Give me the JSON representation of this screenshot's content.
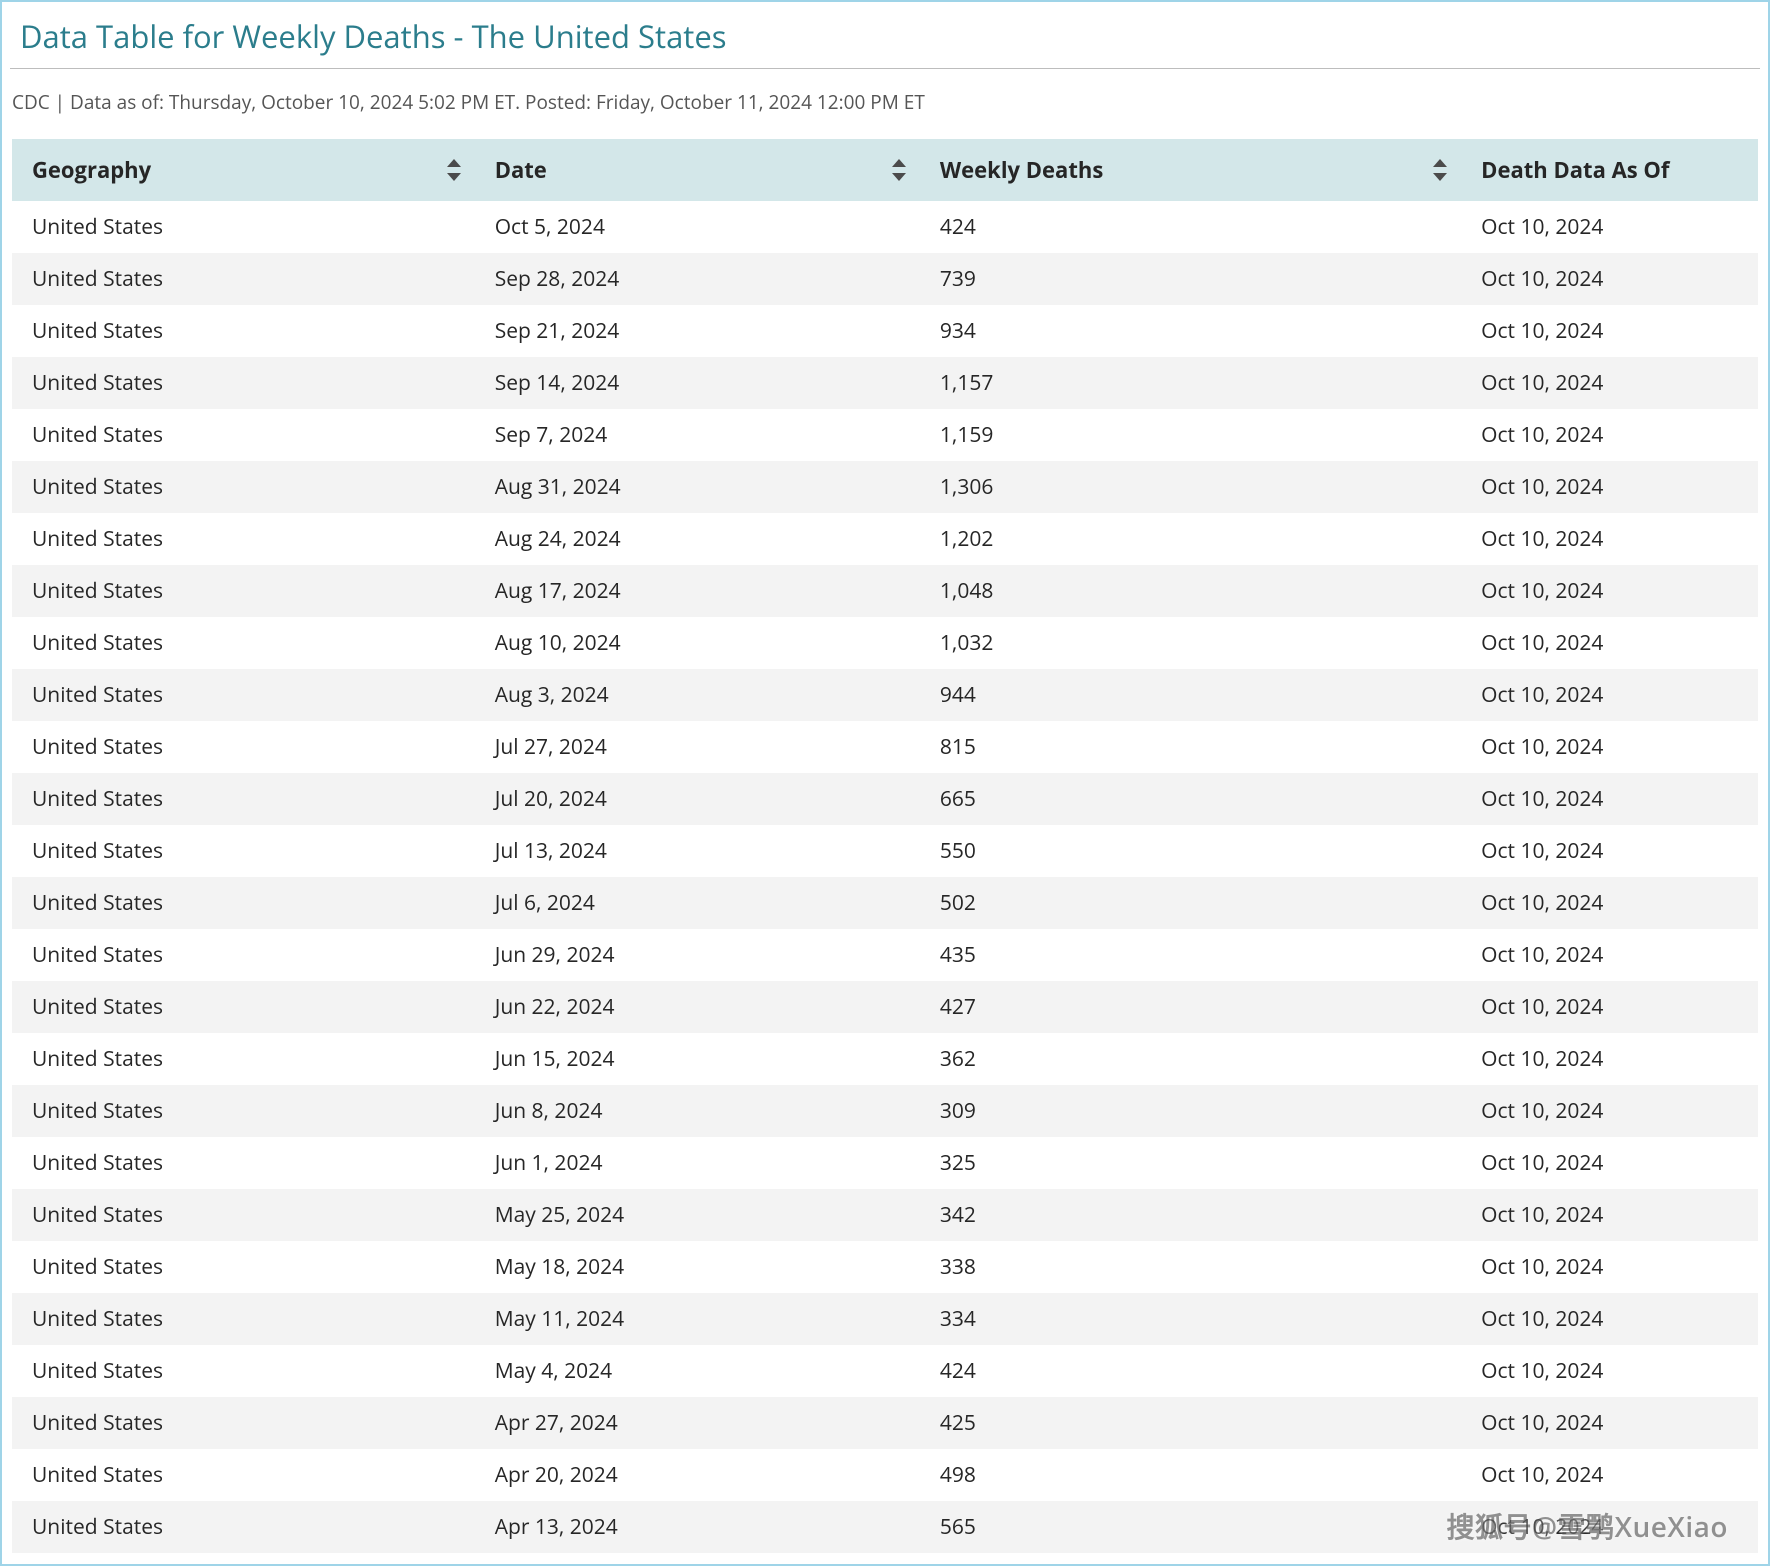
{
  "title": "Data Table for Weekly Deaths - The United States",
  "meta": "CDC | Data as of: Thursday, October 10, 2024 5:02 PM ET. Posted: Friday, October 11, 2024 12:00 PM ET",
  "watermark": "搜狐号@雪鹗XueXiao",
  "table": {
    "columns": [
      {
        "key": "geo",
        "label": "Geography",
        "sortable": true
      },
      {
        "key": "date",
        "label": "Date",
        "sortable": true
      },
      {
        "key": "deaths",
        "label": "Weekly Deaths",
        "sortable": true
      },
      {
        "key": "asof",
        "label": "Death Data As Of",
        "sortable": false
      }
    ],
    "col_widths_pct": [
      26.5,
      25.5,
      31,
      17
    ],
    "header_bg": "#d3e7e9",
    "row_even_bg": "#f3f3f3",
    "row_odd_bg": "#ffffff",
    "text_color": "#262626",
    "rows": [
      {
        "geo": "United States",
        "date": "Oct 5, 2024",
        "deaths": "424",
        "asof": "Oct 10, 2024"
      },
      {
        "geo": "United States",
        "date": "Sep 28, 2024",
        "deaths": "739",
        "asof": "Oct 10, 2024"
      },
      {
        "geo": "United States",
        "date": "Sep 21, 2024",
        "deaths": "934",
        "asof": "Oct 10, 2024"
      },
      {
        "geo": "United States",
        "date": "Sep 14, 2024",
        "deaths": "1,157",
        "asof": "Oct 10, 2024"
      },
      {
        "geo": "United States",
        "date": "Sep 7, 2024",
        "deaths": "1,159",
        "asof": "Oct 10, 2024"
      },
      {
        "geo": "United States",
        "date": "Aug 31, 2024",
        "deaths": "1,306",
        "asof": "Oct 10, 2024"
      },
      {
        "geo": "United States",
        "date": "Aug 24, 2024",
        "deaths": "1,202",
        "asof": "Oct 10, 2024"
      },
      {
        "geo": "United States",
        "date": "Aug 17, 2024",
        "deaths": "1,048",
        "asof": "Oct 10, 2024"
      },
      {
        "geo": "United States",
        "date": "Aug 10, 2024",
        "deaths": "1,032",
        "asof": "Oct 10, 2024"
      },
      {
        "geo": "United States",
        "date": "Aug 3, 2024",
        "deaths": "944",
        "asof": "Oct 10, 2024"
      },
      {
        "geo": "United States",
        "date": "Jul 27, 2024",
        "deaths": "815",
        "asof": "Oct 10, 2024"
      },
      {
        "geo": "United States",
        "date": "Jul 20, 2024",
        "deaths": "665",
        "asof": "Oct 10, 2024"
      },
      {
        "geo": "United States",
        "date": "Jul 13, 2024",
        "deaths": "550",
        "asof": "Oct 10, 2024"
      },
      {
        "geo": "United States",
        "date": "Jul 6, 2024",
        "deaths": "502",
        "asof": "Oct 10, 2024"
      },
      {
        "geo": "United States",
        "date": "Jun 29, 2024",
        "deaths": "435",
        "asof": "Oct 10, 2024"
      },
      {
        "geo": "United States",
        "date": "Jun 22, 2024",
        "deaths": "427",
        "asof": "Oct 10, 2024"
      },
      {
        "geo": "United States",
        "date": "Jun 15, 2024",
        "deaths": "362",
        "asof": "Oct 10, 2024"
      },
      {
        "geo": "United States",
        "date": "Jun 8, 2024",
        "deaths": "309",
        "asof": "Oct 10, 2024"
      },
      {
        "geo": "United States",
        "date": "Jun 1, 2024",
        "deaths": "325",
        "asof": "Oct 10, 2024"
      },
      {
        "geo": "United States",
        "date": "May 25, 2024",
        "deaths": "342",
        "asof": "Oct 10, 2024"
      },
      {
        "geo": "United States",
        "date": "May 18, 2024",
        "deaths": "338",
        "asof": "Oct 10, 2024"
      },
      {
        "geo": "United States",
        "date": "May 11, 2024",
        "deaths": "334",
        "asof": "Oct 10, 2024"
      },
      {
        "geo": "United States",
        "date": "May 4, 2024",
        "deaths": "424",
        "asof": "Oct 10, 2024"
      },
      {
        "geo": "United States",
        "date": "Apr 27, 2024",
        "deaths": "425",
        "asof": "Oct 10, 2024"
      },
      {
        "geo": "United States",
        "date": "Apr 20, 2024",
        "deaths": "498",
        "asof": "Oct 10, 2024"
      },
      {
        "geo": "United States",
        "date": "Apr 13, 2024",
        "deaths": "565",
        "asof": "Oct 10, 2024"
      }
    ]
  },
  "styling": {
    "border_color": "#9fd4e8",
    "title_color": "#2b7d8c",
    "meta_color": "#555555",
    "sort_icon_color": "#4b4b4b",
    "title_fontsize": 31,
    "meta_fontsize": 19,
    "header_fontsize": 22,
    "cell_fontsize": 21
  }
}
